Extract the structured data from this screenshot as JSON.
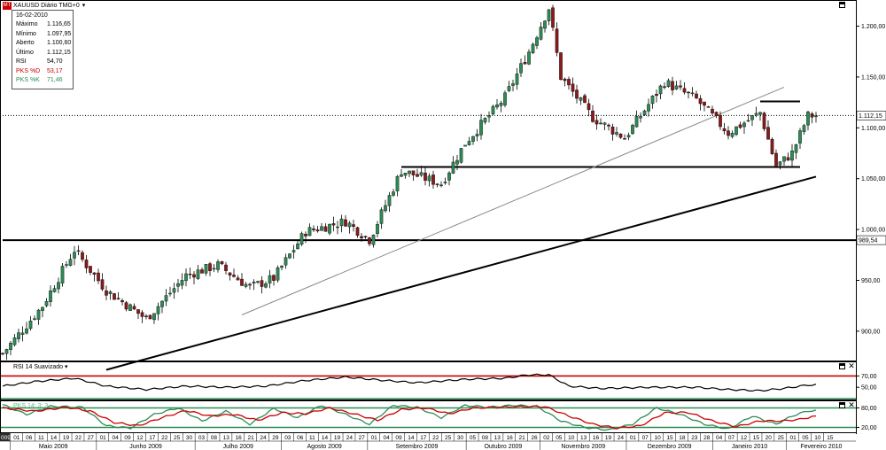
{
  "window": {
    "title": "XAUUSD Diário TMG+0",
    "logo_text": "MT",
    "dropdown_icon": "chevron-down-icon",
    "maximize_icon": "maximize-icon",
    "close_icon": "close-icon"
  },
  "info_box": {
    "date": "16-02-2010",
    "rows": [
      {
        "label": "Máximo",
        "value": "1.116,65",
        "color": "#000000"
      },
      {
        "label": "Mínimo",
        "value": "1.097,95",
        "color": "#000000"
      },
      {
        "label": "Aberto",
        "value": "1.100,60",
        "color": "#000000"
      },
      {
        "label": "Último",
        "value": "1.112,15",
        "color": "#000000"
      },
      {
        "label": "RSI",
        "value": "54,70",
        "color": "#000000"
      },
      {
        "label": "PKS %D",
        "value": "53,17",
        "color": "#cc0000"
      },
      {
        "label": "PKS %K",
        "value": "71,46",
        "color": "#2e8b57"
      }
    ]
  },
  "chart_data": [
    {
      "type": "candlestick",
      "name": "XAUUSD Diário TMG+0",
      "y_ticks": [
        "1.200,00",
        "1.150,00",
        "1.100,00",
        "1.050,00",
        "1.000,00",
        "950,00",
        "900,00"
      ],
      "y_tick_values": [
        1200,
        1150,
        1100,
        1050,
        1000,
        950,
        900
      ],
      "ylim": [
        872,
        1224
      ],
      "last_price_label": "1.112,15",
      "last_price": 1112.15,
      "level_label": "989,54",
      "level_value": 989.54,
      "colors": {
        "up": "#2e8b57",
        "down": "#8b1a1a",
        "wick": "#000000"
      },
      "close_anchors": [
        [
          0,
          878
        ],
        [
          10,
          925
        ],
        [
          18,
          980
        ],
        [
          26,
          940
        ],
        [
          36,
          912
        ],
        [
          46,
          955
        ],
        [
          54,
          965
        ],
        [
          62,
          943
        ],
        [
          68,
          952
        ],
        [
          76,
          998
        ],
        [
          86,
          1008
        ],
        [
          92,
          990
        ],
        [
          100,
          1058
        ],
        [
          110,
          1045
        ],
        [
          116,
          1085
        ],
        [
          126,
          1130
        ],
        [
          132,
          1175
        ],
        [
          137,
          1218
        ],
        [
          140,
          1150
        ],
        [
          148,
          1110
        ],
        [
          156,
          1090
        ],
        [
          166,
          1145
        ],
        [
          174,
          1128
        ],
        [
          182,
          1095
        ],
        [
          190,
          1115
        ],
        [
          194,
          1062
        ],
        [
          198,
          1075
        ],
        [
          202,
          1112
        ]
      ],
      "horizontal_lines": [
        {
          "value": 989.54,
          "from": 0,
          "to": 250,
          "color": "#000000"
        },
        {
          "value": 1061.5,
          "from": 100,
          "to": 200,
          "color": "#000000"
        },
        {
          "value": 1126,
          "from": 190,
          "to": 200,
          "color": "#000000"
        }
      ],
      "trend_lines": [
        {
          "from": [
            26,
            862
          ],
          "to": [
            204,
            1052
          ],
          "color": "#000000",
          "width": 2
        },
        {
          "from": [
            60,
            916
          ],
          "to": [
            196,
            1140
          ],
          "color": "#888888",
          "width": 1
        }
      ]
    },
    {
      "type": "line",
      "name": "RSI 14 Suavizado",
      "y_ticks": [
        "70,00",
        "50,00"
      ],
      "y_tick_values": [
        70,
        50
      ],
      "ylim": [
        30,
        80
      ],
      "hlines": [
        {
          "value": 70,
          "color": "#cc0000"
        },
        {
          "value": 30,
          "color": "#2e8b57"
        }
      ],
      "series": [
        {
          "name": "RSI",
          "color": "#000000",
          "anchors": [
            [
              0,
              52
            ],
            [
              8,
              60
            ],
            [
              18,
              66
            ],
            [
              26,
              52
            ],
            [
              36,
              46
            ],
            [
              46,
              52
            ],
            [
              56,
              50
            ],
            [
              66,
              52
            ],
            [
              76,
              62
            ],
            [
              86,
              68
            ],
            [
              96,
              62
            ],
            [
              104,
              58
            ],
            [
              116,
              64
            ],
            [
              126,
              66
            ],
            [
              132,
              72
            ],
            [
              137,
              72
            ],
            [
              142,
              52
            ],
            [
              150,
              48
            ],
            [
              162,
              50
            ],
            [
              174,
              50
            ],
            [
              182,
              46
            ],
            [
              190,
              44
            ],
            [
              196,
              48
            ],
            [
              202,
              54
            ]
          ]
        }
      ]
    },
    {
      "type": "line",
      "name": "PKS 14; 3; 3",
      "y_ticks": [
        "80,00",
        "20,00"
      ],
      "y_tick_values": [
        80,
        20
      ],
      "ylim": [
        5,
        95
      ],
      "hlines": [
        {
          "value": 80,
          "color": "#2e8b57"
        },
        {
          "value": 20,
          "color": "#2e8b57"
        }
      ],
      "series": [
        {
          "name": "PKS %K",
          "color": "#2e8b57",
          "anchors": [
            [
              0,
              90
            ],
            [
              6,
              60
            ],
            [
              12,
              85
            ],
            [
              20,
              82
            ],
            [
              26,
              25
            ],
            [
              32,
              18
            ],
            [
              38,
              60
            ],
            [
              44,
              80
            ],
            [
              50,
              40
            ],
            [
              56,
              70
            ],
            [
              62,
              30
            ],
            [
              68,
              78
            ],
            [
              74,
              50
            ],
            [
              80,
              88
            ],
            [
              86,
              60
            ],
            [
              92,
              30
            ],
            [
              98,
              88
            ],
            [
              104,
              82
            ],
            [
              110,
              50
            ],
            [
              116,
              88
            ],
            [
              122,
              82
            ],
            [
              128,
              88
            ],
            [
              134,
              85
            ],
            [
              140,
              40
            ],
            [
              146,
              20
            ],
            [
              152,
              12
            ],
            [
              158,
              30
            ],
            [
              164,
              80
            ],
            [
              170,
              60
            ],
            [
              176,
              30
            ],
            [
              182,
              15
            ],
            [
              188,
              55
            ],
            [
              194,
              30
            ],
            [
              198,
              55
            ],
            [
              202,
              71
            ]
          ]
        },
        {
          "name": "PKS %D",
          "color": "#cc0000",
          "anchors": [
            [
              0,
              80
            ],
            [
              8,
              70
            ],
            [
              16,
              82
            ],
            [
              22,
              70
            ],
            [
              28,
              35
            ],
            [
              34,
              25
            ],
            [
              40,
              50
            ],
            [
              46,
              72
            ],
            [
              52,
              55
            ],
            [
              58,
              60
            ],
            [
              64,
              42
            ],
            [
              70,
              65
            ],
            [
              76,
              62
            ],
            [
              82,
              80
            ],
            [
              88,
              62
            ],
            [
              94,
              42
            ],
            [
              100,
              75
            ],
            [
              106,
              80
            ],
            [
              112,
              62
            ],
            [
              118,
              80
            ],
            [
              124,
              82
            ],
            [
              130,
              84
            ],
            [
              136,
              84
            ],
            [
              142,
              55
            ],
            [
              148,
              30
            ],
            [
              154,
              18
            ],
            [
              160,
              25
            ],
            [
              166,
              65
            ],
            [
              172,
              66
            ],
            [
              178,
              40
            ],
            [
              184,
              22
            ],
            [
              190,
              40
            ],
            [
              196,
              40
            ],
            [
              200,
              45
            ],
            [
              203,
              53
            ]
          ]
        }
      ]
    }
  ],
  "rsi_panel": {
    "title": "RSI 14 Suavizado"
  },
  "pks_panel": {
    "title": "PKS 14; 3; 3"
  },
  "x_axis": {
    "first_label": "009",
    "day_labels": [
      "01",
      "06",
      "11",
      "14",
      "19",
      "22",
      "27",
      "01",
      "04",
      "09",
      "12",
      "17",
      "22",
      "25",
      "30",
      "03",
      "08",
      "13",
      "16",
      "21",
      "24",
      "29",
      "03",
      "06",
      "11",
      "14",
      "19",
      "24",
      "27",
      "01",
      "04",
      "09",
      "14",
      "17",
      "22",
      "25",
      "30",
      "05",
      "08",
      "13",
      "16",
      "21",
      "26",
      "02",
      "05",
      "10",
      "13",
      "16",
      "19",
      "24",
      "01",
      "07",
      "10",
      "15",
      "18",
      "23",
      "28",
      "04",
      "07",
      "12",
      "15",
      "20",
      "25",
      "01",
      "05",
      "10",
      "15"
    ],
    "months": [
      "Maio 2009",
      "Junho 2009",
      "Julho 2009",
      "Agosto 2009",
      "Setembro 2009",
      "Outubro 2009",
      "Novembro 2009",
      "Dezembro 2009",
      "Janeiro 2010",
      "Fevereiro 2010"
    ],
    "month_start_day_index": [
      0,
      7,
      15,
      22,
      29,
      37,
      43,
      50,
      57,
      63
    ]
  }
}
